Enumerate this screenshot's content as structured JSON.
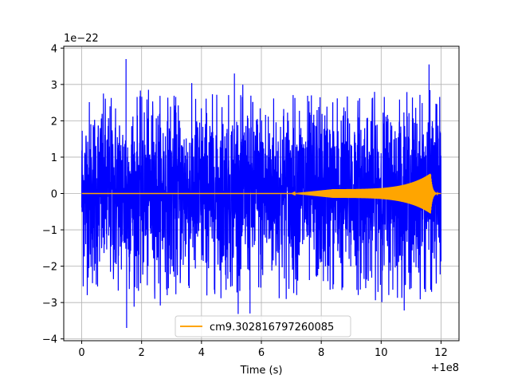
{
  "chart_data": {
    "type": "line",
    "title": "",
    "xlabel": "Time (s)",
    "ylabel": "",
    "x_offset_label": "+1e8",
    "y_scale_label": "1e−22",
    "xlim": [
      -0.6,
      12.6
    ],
    "ylim": [
      -4.05,
      4.05
    ],
    "x_ticks": [
      0,
      2,
      4,
      6,
      8,
      10,
      12
    ],
    "x_tick_labels": [
      "0",
      "2",
      "4",
      "6",
      "8",
      "10",
      "12"
    ],
    "y_ticks": [
      -4,
      -3,
      -2,
      -1,
      0,
      1,
      2,
      3,
      4
    ],
    "y_tick_labels": [
      "−4",
      "−3",
      "−2",
      "−1",
      "0",
      "1",
      "2",
      "3",
      "4"
    ],
    "grid": true,
    "legend_position": "lower-center",
    "series": [
      {
        "kind": "noise",
        "color": "#0000ff",
        "x_start": 0,
        "x_end": 12,
        "typical_amplitude": 2.0,
        "peak_values": [
          {
            "x": 1.48,
            "y": 3.7
          },
          {
            "x": 1.5,
            "y": -3.7
          },
          {
            "x": 11.6,
            "y": 3.55
          },
          {
            "x": 5.62,
            "y": -3.3
          },
          {
            "x": 5.1,
            "y": 3.3
          }
        ]
      },
      {
        "name": "cm9.302816797260085",
        "kind": "chirp",
        "color": "#ffa500",
        "x_start": 0,
        "x_end": 12,
        "onset_x": 7.0,
        "plateau_amplitude": 0.12,
        "merger_x": 11.65,
        "merger_amplitude": 0.55
      }
    ]
  }
}
